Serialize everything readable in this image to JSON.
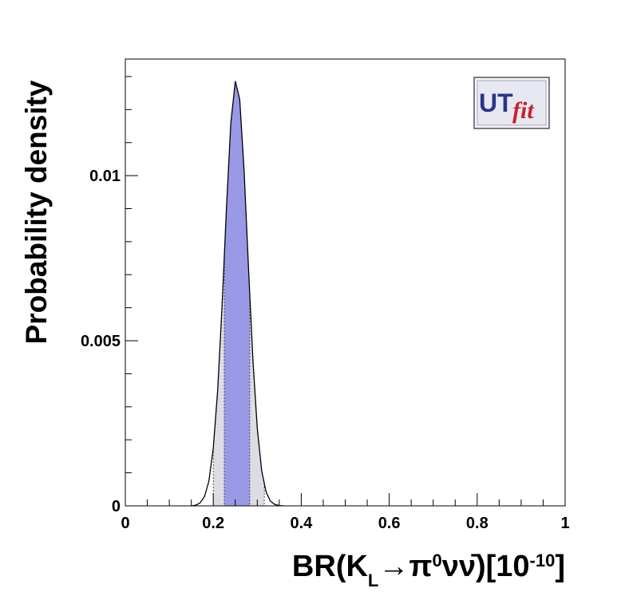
{
  "chart_data": {
    "type": "density",
    "xlabel": [
      {
        "text": "BR(K"
      },
      {
        "text": "L",
        "shift": "sub"
      },
      {
        "text": "→π"
      },
      {
        "text": "0",
        "shift": "sup"
      },
      {
        "text": "νν̄)[10"
      },
      {
        "text": "-10",
        "shift": "sup"
      },
      {
        "text": "]"
      }
    ],
    "ylabel": "Probability density",
    "annotations": [
      "UT",
      "fit"
    ],
    "x": [
      0.15,
      0.16,
      0.17,
      0.18,
      0.19,
      0.2,
      0.21,
      0.22,
      0.23,
      0.24,
      0.25,
      0.26,
      0.27,
      0.28,
      0.29,
      0.3,
      0.31,
      0.32,
      0.33,
      0.34,
      0.35,
      0.36
    ],
    "values": [
      0,
      2e-05,
      9e-05,
      0.00028,
      0.00075,
      0.00175,
      0.0035,
      0.00605,
      0.00902,
      0.0116,
      0.01286,
      0.01231,
      0.01015,
      0.00722,
      0.00443,
      0.00235,
      0.00107,
      0.00042,
      0.00014,
      4e-05,
      1e-05,
      0
    ],
    "color": "#000000",
    "intervals": [
      {
        "lo": 0.2,
        "hi": 0.316,
        "color": "#dcdce4"
      },
      {
        "lo": 0.225,
        "hi": 0.283,
        "color": "#9999e6"
      }
    ],
    "xlim": [
      0,
      1
    ],
    "ylim": [
      0,
      0.01353
    ],
    "xticks": [
      0,
      0.2,
      0.4,
      0.6,
      0.8,
      1
    ],
    "yticks": [
      0,
      0.005,
      0.01
    ],
    "xminorticks": [
      0.05,
      0.1,
      0.15,
      0.25,
      0.3,
      0.35,
      0.45,
      0.5,
      0.55,
      0.65,
      0.7,
      0.75,
      0.85,
      0.9,
      0.95
    ],
    "yminorticks": [
      0.001,
      0.002,
      0.003,
      0.004,
      0.006,
      0.007,
      0.008,
      0.009,
      0.011,
      0.012,
      0.013
    ]
  }
}
